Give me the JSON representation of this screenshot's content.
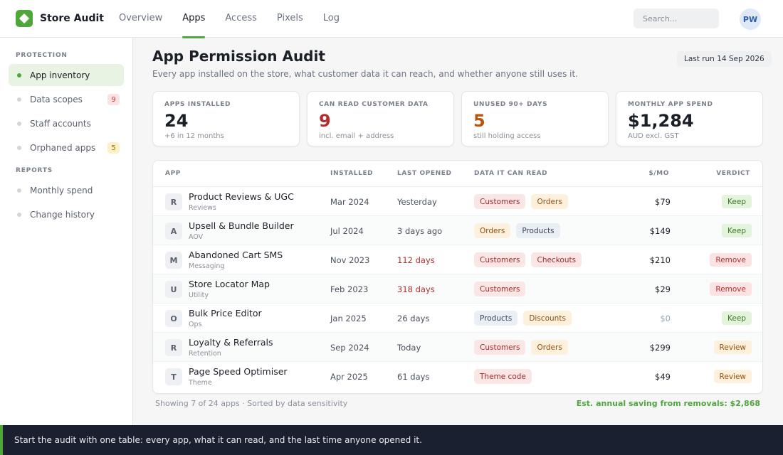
{
  "brand": {
    "name": "Store Audit",
    "logo_icon": "diamond-icon",
    "accent": "#4fa73c"
  },
  "nav": {
    "tabs": [
      {
        "label": "Overview",
        "active": false
      },
      {
        "label": "Apps",
        "active": true
      },
      {
        "label": "Access",
        "active": false
      },
      {
        "label": "Pixels",
        "active": false
      },
      {
        "label": "Log",
        "active": false
      }
    ]
  },
  "search": {
    "placeholder": "Search..."
  },
  "user": {
    "initials": "PW"
  },
  "sidebar": {
    "protection_heading": "PROTECTION",
    "reports_heading": "REPORTS",
    "protection_items": [
      {
        "label": "App inventory",
        "active": true,
        "badge": ""
      },
      {
        "label": "Data scopes",
        "active": false,
        "badge": "9"
      },
      {
        "label": "Staff accounts",
        "active": false,
        "badge": ""
      },
      {
        "label": "Orphaned apps",
        "active": false,
        "badge": "5"
      }
    ],
    "reports_items": [
      {
        "label": "Monthly spend"
      },
      {
        "label": "Change history"
      }
    ]
  },
  "page": {
    "title": "App Permission Audit",
    "subtitle": "Every app installed on the store, what customer data it can reach, and whether anyone still uses it.",
    "last_run": "Last run 14 Sep 2026"
  },
  "stats": [
    {
      "label": "APPS INSTALLED",
      "value": "24",
      "note": "+6 in 12 months"
    },
    {
      "label": "CAN READ CUSTOMER DATA",
      "value": "9",
      "note": "incl. email + address"
    },
    {
      "label": "UNUSED 90+ DAYS",
      "value": "5",
      "note": "still holding access"
    },
    {
      "label": "MONTHLY APP SPEND",
      "value": "$1,284",
      "note": "AUD excl. GST"
    }
  ],
  "table": {
    "columns": [
      "APP",
      "INSTALLED",
      "LAST OPENED",
      "DATA IT CAN READ",
      "$/MO",
      "VERDICT"
    ],
    "rows": [
      {
        "initial": "R",
        "name": "Product Reviews & UGC",
        "category": "Reviews",
        "installed": "Mar 2024",
        "last_opened": "Yesterday",
        "stale": false,
        "scopes": [
          "Customers",
          "Orders"
        ],
        "cost": "$79",
        "verdict": "Keep"
      },
      {
        "initial": "A",
        "name": "Upsell & Bundle Builder",
        "category": "AOV",
        "installed": "Jul 2024",
        "last_opened": "3 days ago",
        "stale": false,
        "scopes": [
          "Orders",
          "Products"
        ],
        "cost": "$149",
        "verdict": "Keep"
      },
      {
        "initial": "M",
        "name": "Abandoned Cart SMS",
        "category": "Messaging",
        "installed": "Nov 2023",
        "last_opened": "112 days",
        "stale": true,
        "scopes": [
          "Customers",
          "Checkouts"
        ],
        "cost": "$210",
        "verdict": "Remove"
      },
      {
        "initial": "U",
        "name": "Store Locator Map",
        "category": "Utility",
        "installed": "Feb 2023",
        "last_opened": "318 days",
        "stale": true,
        "scopes": [
          "Customers"
        ],
        "cost": "$29",
        "verdict": "Remove"
      },
      {
        "initial": "O",
        "name": "Bulk Price Editor",
        "category": "Ops",
        "installed": "Jan 2025",
        "last_opened": "26 days",
        "stale": false,
        "scopes": [
          "Products",
          "Discounts"
        ],
        "cost": "$0",
        "verdict": "Keep"
      },
      {
        "initial": "R",
        "name": "Loyalty & Referrals",
        "category": "Retention",
        "installed": "Sep 2024",
        "last_opened": "Today",
        "stale": false,
        "scopes": [
          "Customers",
          "Orders"
        ],
        "cost": "$299",
        "verdict": "Review"
      },
      {
        "initial": "T",
        "name": "Page Speed Optimiser",
        "category": "Theme",
        "installed": "Apr 2025",
        "last_opened": "61 days",
        "stale": false,
        "scopes": [
          "Theme code"
        ],
        "cost": "$49",
        "verdict": "Review"
      }
    ]
  },
  "footer": {
    "showing": "Showing 7 of 24 apps · Sorted by data sensitivity",
    "saving": "Est. annual saving from removals: $2,868"
  },
  "banner": {
    "text": "Start the audit with one table: every app, what it can read, and the last time anyone opened it."
  }
}
